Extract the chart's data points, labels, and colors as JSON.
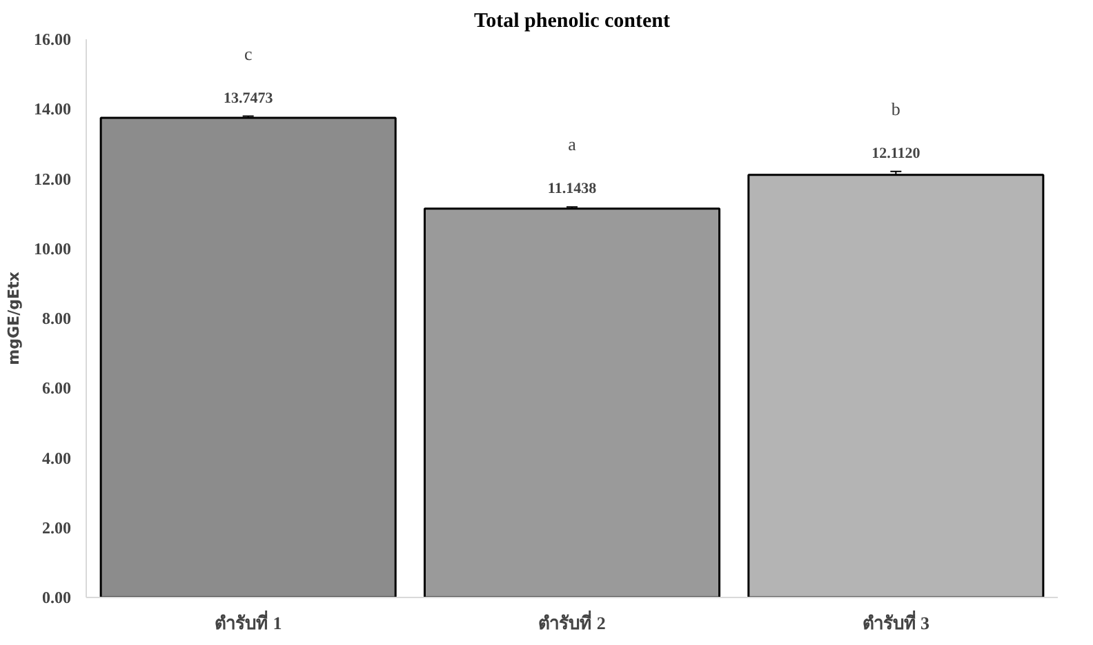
{
  "chart_data": {
    "type": "bar",
    "title": "Total phenolic content",
    "ylabel": "mgGE/gEtx",
    "categories": [
      "ตำรับที่ 1",
      "ตำรับที่ 2",
      "ตำรับที่ 3"
    ],
    "values": [
      13.7473,
      11.1438,
      12.112
    ],
    "errors": [
      0.05,
      0.05,
      0.1
    ],
    "colors": [
      "#8c8c8c",
      "#9a9a9a",
      "#b4b4b4"
    ],
    "value_labels": [
      "13.7473",
      "11.1438",
      "12.1120"
    ],
    "annotations": [
      "c",
      "a",
      "b"
    ],
    "ylim": [
      0,
      16
    ],
    "yticks": [
      {
        "value": 0,
        "label": "0.00"
      },
      {
        "value": 2,
        "label": "2.00"
      },
      {
        "value": 4,
        "label": "4.00"
      },
      {
        "value": 6,
        "label": "6.00"
      },
      {
        "value": 8,
        "label": "8.00"
      },
      {
        "value": 10,
        "label": "10.00"
      },
      {
        "value": 12,
        "label": "12.00"
      },
      {
        "value": 14,
        "label": "14.00"
      },
      {
        "value": 16,
        "label": "16.00"
      }
    ],
    "grid": false
  }
}
